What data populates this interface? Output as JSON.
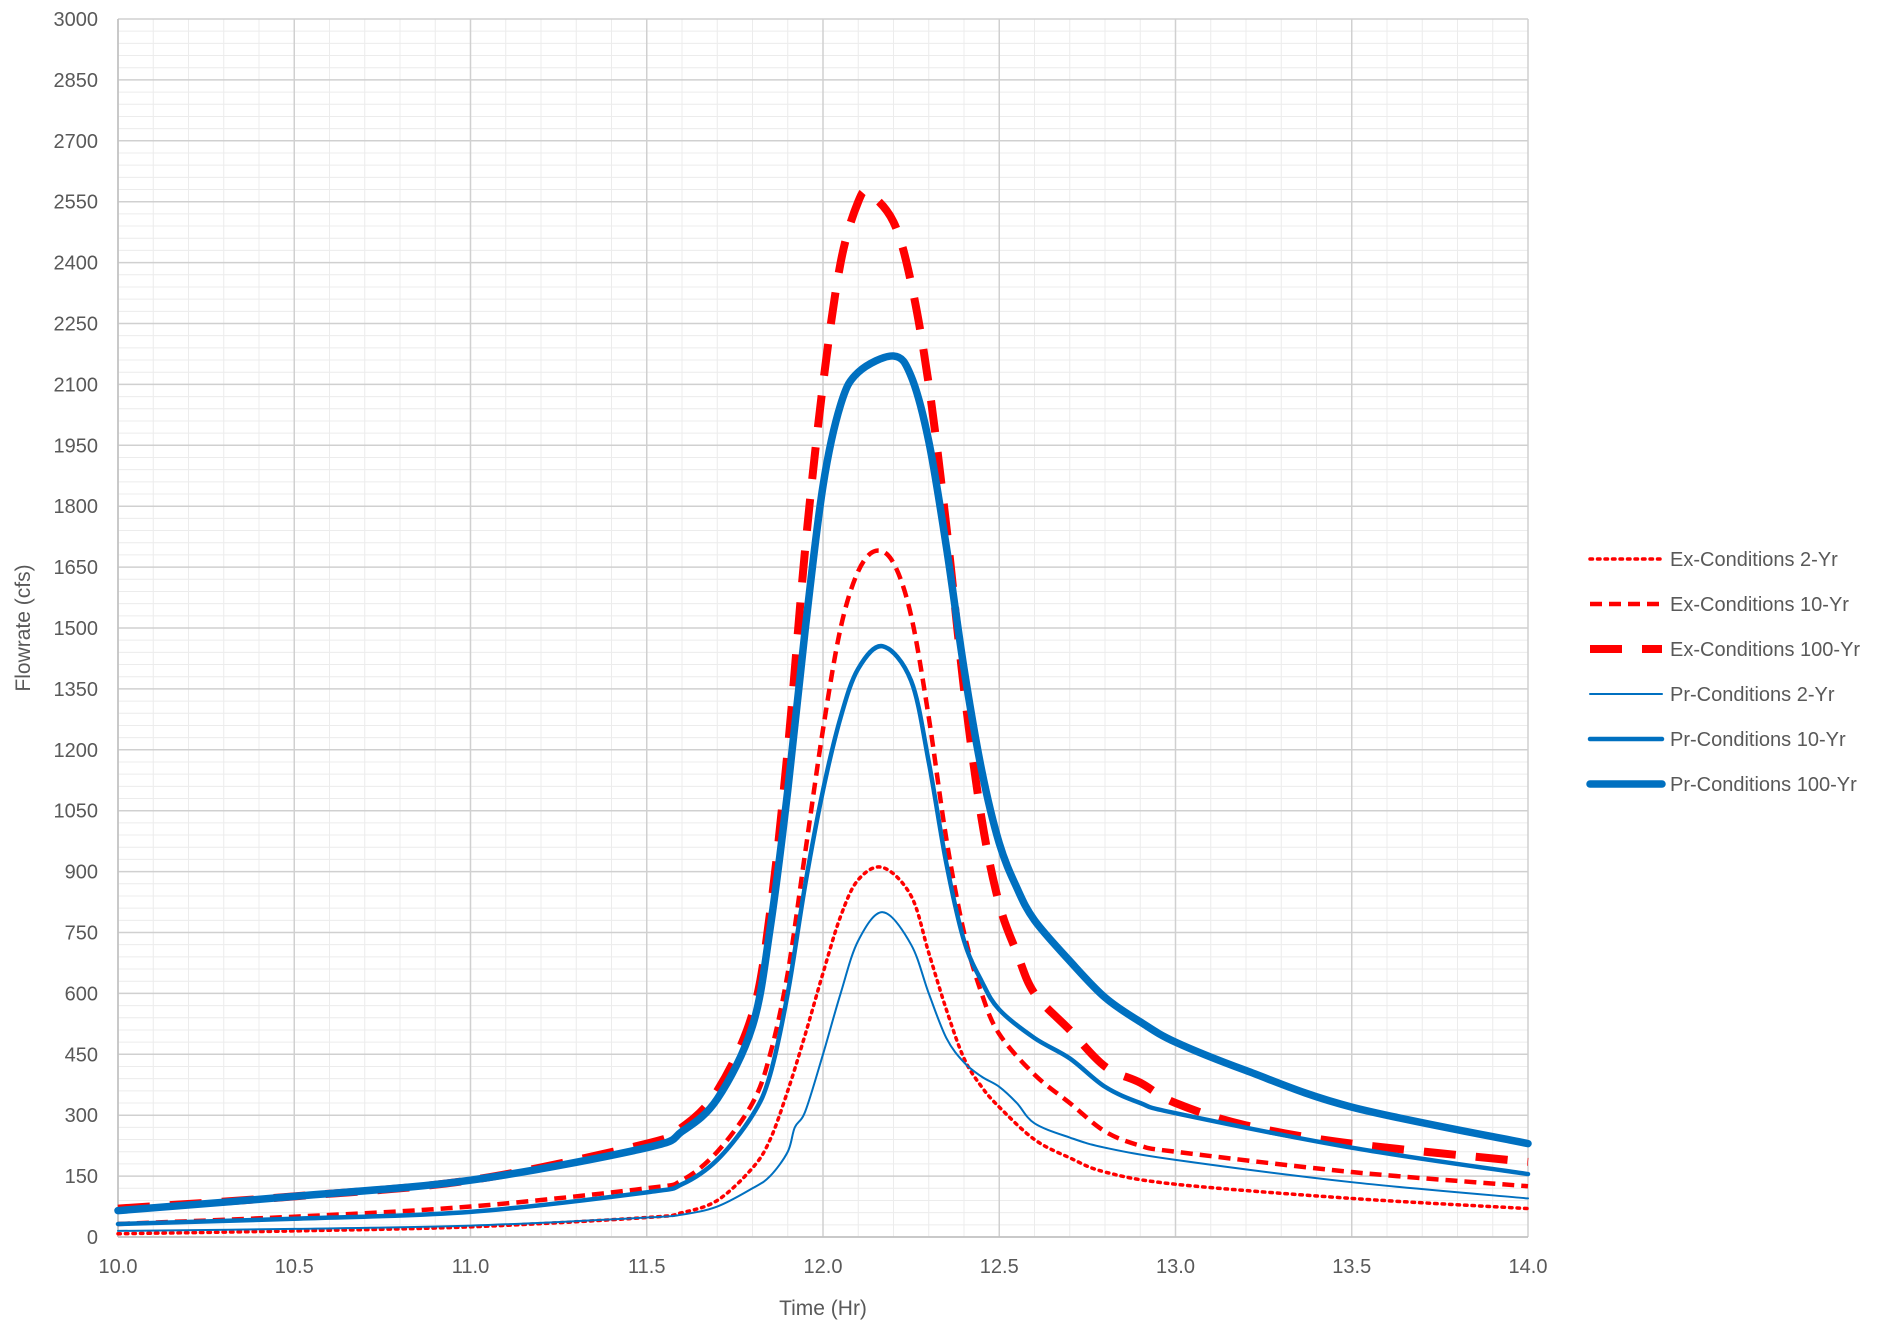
{
  "chart_data": {
    "type": "line",
    "title": "",
    "xlabel": "Time (Hr)",
    "ylabel": "Flowrate (cfs)",
    "xlim": [
      10.0,
      14.0
    ],
    "ylim": [
      0,
      3000
    ],
    "x_ticks": [
      "10.0",
      "10.5",
      "11.0",
      "11.5",
      "12.0",
      "12.5",
      "13.0",
      "13.5",
      "14.0"
    ],
    "y_ticks": [
      "0",
      "150",
      "300",
      "450",
      "600",
      "750",
      "900",
      "1050",
      "1200",
      "1350",
      "1500",
      "1650",
      "1800",
      "1950",
      "2100",
      "2250",
      "2400",
      "2550",
      "2700",
      "2850",
      "3000"
    ],
    "grid": true,
    "legend_position": "right",
    "series": [
      {
        "name": "Ex-Conditions 2-Yr",
        "color": "#ff0000",
        "style": "dotted",
        "points": [
          [
            10.0,
            8
          ],
          [
            10.5,
            15
          ],
          [
            11.0,
            25
          ],
          [
            11.5,
            48
          ],
          [
            11.6,
            60
          ],
          [
            11.7,
            90
          ],
          [
            11.8,
            170
          ],
          [
            11.85,
            240
          ],
          [
            11.9,
            360
          ],
          [
            11.95,
            500
          ],
          [
            12.0,
            650
          ],
          [
            12.05,
            790
          ],
          [
            12.1,
            880
          ],
          [
            12.17,
            910
          ],
          [
            12.25,
            840
          ],
          [
            12.3,
            700
          ],
          [
            12.35,
            560
          ],
          [
            12.4,
            440
          ],
          [
            12.45,
            370
          ],
          [
            12.5,
            320
          ],
          [
            12.6,
            240
          ],
          [
            12.7,
            195
          ],
          [
            12.8,
            160
          ],
          [
            13.0,
            130
          ],
          [
            13.5,
            95
          ],
          [
            14.0,
            70
          ]
        ]
      },
      {
        "name": "Ex-Conditions 10-Yr",
        "color": "#ff0000",
        "style": "dashed",
        "points": [
          [
            10.0,
            32
          ],
          [
            10.5,
            50
          ],
          [
            11.0,
            75
          ],
          [
            11.5,
            120
          ],
          [
            11.6,
            140
          ],
          [
            11.7,
            210
          ],
          [
            11.8,
            330
          ],
          [
            11.85,
            450
          ],
          [
            11.9,
            650
          ],
          [
            11.95,
            950
          ],
          [
            12.0,
            1250
          ],
          [
            12.05,
            1500
          ],
          [
            12.1,
            1640
          ],
          [
            12.15,
            1690
          ],
          [
            12.2,
            1660
          ],
          [
            12.25,
            1530
          ],
          [
            12.3,
            1280
          ],
          [
            12.35,
            980
          ],
          [
            12.4,
            750
          ],
          [
            12.45,
            600
          ],
          [
            12.5,
            500
          ],
          [
            12.6,
            400
          ],
          [
            12.7,
            330
          ],
          [
            12.8,
            260
          ],
          [
            12.9,
            225
          ],
          [
            13.0,
            210
          ],
          [
            13.5,
            160
          ],
          [
            14.0,
            125
          ]
        ]
      },
      {
        "name": "Ex-Conditions 100-Yr",
        "color": "#ff0000",
        "style": "longdash",
        "points": [
          [
            10.0,
            70
          ],
          [
            10.5,
            100
          ],
          [
            11.0,
            140
          ],
          [
            11.5,
            230
          ],
          [
            11.6,
            270
          ],
          [
            11.7,
            360
          ],
          [
            11.8,
            550
          ],
          [
            11.85,
            800
          ],
          [
            11.9,
            1200
          ],
          [
            11.95,
            1700
          ],
          [
            12.0,
            2100
          ],
          [
            12.05,
            2400
          ],
          [
            12.1,
            2550
          ],
          [
            12.13,
            2570
          ],
          [
            12.2,
            2500
          ],
          [
            12.25,
            2350
          ],
          [
            12.3,
            2100
          ],
          [
            12.35,
            1750
          ],
          [
            12.4,
            1350
          ],
          [
            12.45,
            1030
          ],
          [
            12.5,
            820
          ],
          [
            12.55,
            700
          ],
          [
            12.6,
            600
          ],
          [
            12.7,
            510
          ],
          [
            12.8,
            420
          ],
          [
            12.9,
            380
          ],
          [
            13.0,
            330
          ],
          [
            13.2,
            275
          ],
          [
            13.5,
            230
          ],
          [
            14.0,
            185
          ]
        ]
      },
      {
        "name": "Pr-Conditions 2-Yr",
        "color": "#0070c0",
        "style": "thin",
        "points": [
          [
            10.0,
            15
          ],
          [
            10.5,
            20
          ],
          [
            11.0,
            28
          ],
          [
            11.5,
            48
          ],
          [
            11.6,
            55
          ],
          [
            11.7,
            75
          ],
          [
            11.8,
            120
          ],
          [
            11.85,
            150
          ],
          [
            11.9,
            210
          ],
          [
            11.92,
            270
          ],
          [
            11.95,
            310
          ],
          [
            12.0,
            450
          ],
          [
            12.05,
            600
          ],
          [
            12.1,
            730
          ],
          [
            12.17,
            800
          ],
          [
            12.25,
            720
          ],
          [
            12.3,
            600
          ],
          [
            12.35,
            490
          ],
          [
            12.4,
            430
          ],
          [
            12.45,
            395
          ],
          [
            12.5,
            370
          ],
          [
            12.55,
            330
          ],
          [
            12.6,
            280
          ],
          [
            12.7,
            245
          ],
          [
            12.8,
            220
          ],
          [
            13.0,
            190
          ],
          [
            13.5,
            135
          ],
          [
            14.0,
            95
          ]
        ]
      },
      {
        "name": "Pr-Conditions 10-Yr",
        "color": "#0070c0",
        "style": "medium",
        "points": [
          [
            10.0,
            32
          ],
          [
            10.5,
            45
          ],
          [
            11.0,
            62
          ],
          [
            11.5,
            110
          ],
          [
            11.6,
            130
          ],
          [
            11.7,
            190
          ],
          [
            11.8,
            300
          ],
          [
            11.85,
            400
          ],
          [
            11.9,
            600
          ],
          [
            11.95,
            870
          ],
          [
            12.0,
            1100
          ],
          [
            12.05,
            1280
          ],
          [
            12.1,
            1400
          ],
          [
            12.17,
            1455
          ],
          [
            12.25,
            1370
          ],
          [
            12.3,
            1170
          ],
          [
            12.35,
            920
          ],
          [
            12.4,
            730
          ],
          [
            12.45,
            630
          ],
          [
            12.5,
            560
          ],
          [
            12.6,
            490
          ],
          [
            12.7,
            440
          ],
          [
            12.8,
            370
          ],
          [
            12.9,
            330
          ],
          [
            13.0,
            305
          ],
          [
            13.5,
            220
          ],
          [
            14.0,
            155
          ]
        ]
      },
      {
        "name": "Pr-Conditions 100-Yr",
        "color": "#0070c0",
        "style": "thick",
        "points": [
          [
            10.0,
            65
          ],
          [
            10.5,
            100
          ],
          [
            11.0,
            140
          ],
          [
            11.5,
            220
          ],
          [
            11.6,
            260
          ],
          [
            11.7,
            340
          ],
          [
            11.8,
            520
          ],
          [
            11.85,
            760
          ],
          [
            11.9,
            1100
          ],
          [
            11.95,
            1500
          ],
          [
            12.0,
            1850
          ],
          [
            12.05,
            2050
          ],
          [
            12.1,
            2130
          ],
          [
            12.2,
            2170
          ],
          [
            12.25,
            2120
          ],
          [
            12.3,
            1960
          ],
          [
            12.35,
            1700
          ],
          [
            12.4,
            1400
          ],
          [
            12.45,
            1150
          ],
          [
            12.5,
            970
          ],
          [
            12.55,
            860
          ],
          [
            12.6,
            780
          ],
          [
            12.7,
            680
          ],
          [
            12.8,
            590
          ],
          [
            12.9,
            530
          ],
          [
            13.0,
            480
          ],
          [
            13.2,
            410
          ],
          [
            13.5,
            320
          ],
          [
            14.0,
            230
          ]
        ]
      }
    ]
  }
}
